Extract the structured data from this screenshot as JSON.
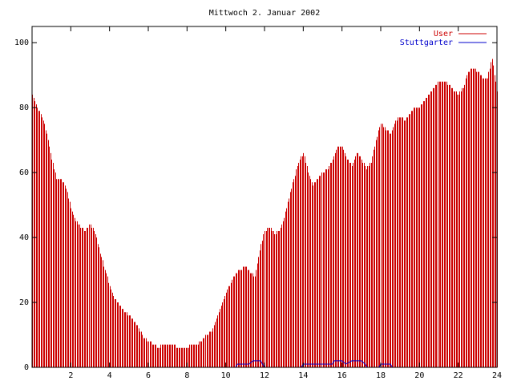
{
  "chart_data": {
    "type": "bar",
    "title": "Mittwoch 2. Januar 2002",
    "xlabel": "",
    "ylabel": "",
    "xlim": [
      0,
      24
    ],
    "ylim": [
      0,
      105
    ],
    "x_ticks": [
      2,
      4,
      6,
      8,
      10,
      12,
      14,
      16,
      18,
      20,
      22,
      24
    ],
    "y_ticks": [
      0,
      20,
      40,
      60,
      80,
      100
    ],
    "grid": false,
    "legend_position": "top-right",
    "series": [
      {
        "name": "User",
        "style": "impulses",
        "color": "#cc0000",
        "points": [
          [
            0.0,
            84
          ],
          [
            0.25,
            80
          ],
          [
            0.5,
            77
          ],
          [
            0.75,
            72
          ],
          [
            1.0,
            64
          ],
          [
            1.25,
            58
          ],
          [
            1.5,
            58
          ],
          [
            1.75,
            55
          ],
          [
            2.0,
            49
          ],
          [
            2.25,
            45
          ],
          [
            2.5,
            43
          ],
          [
            2.75,
            42
          ],
          [
            3.0,
            44
          ],
          [
            3.25,
            41
          ],
          [
            3.5,
            35
          ],
          [
            3.75,
            30
          ],
          [
            4.0,
            25
          ],
          [
            4.25,
            21
          ],
          [
            4.5,
            19
          ],
          [
            4.75,
            17
          ],
          [
            5.0,
            16
          ],
          [
            5.25,
            14
          ],
          [
            5.5,
            12
          ],
          [
            5.75,
            9
          ],
          [
            6.0,
            8
          ],
          [
            6.25,
            7
          ],
          [
            6.5,
            6
          ],
          [
            6.75,
            7
          ],
          [
            7.0,
            7
          ],
          [
            7.25,
            7
          ],
          [
            7.5,
            6
          ],
          [
            7.75,
            6
          ],
          [
            8.0,
            6
          ],
          [
            8.25,
            7
          ],
          [
            8.5,
            7
          ],
          [
            8.75,
            8
          ],
          [
            9.0,
            10
          ],
          [
            9.25,
            11
          ],
          [
            9.5,
            15
          ],
          [
            9.75,
            19
          ],
          [
            10.0,
            23
          ],
          [
            10.25,
            26
          ],
          [
            10.5,
            29
          ],
          [
            10.75,
            30
          ],
          [
            11.0,
            31
          ],
          [
            11.25,
            29
          ],
          [
            11.5,
            28
          ],
          [
            11.75,
            36
          ],
          [
            12.0,
            42
          ],
          [
            12.25,
            43
          ],
          [
            12.5,
            41
          ],
          [
            12.75,
            42
          ],
          [
            13.0,
            46
          ],
          [
            13.25,
            52
          ],
          [
            13.5,
            58
          ],
          [
            13.75,
            63
          ],
          [
            14.0,
            66
          ],
          [
            14.25,
            60
          ],
          [
            14.5,
            56
          ],
          [
            14.75,
            58
          ],
          [
            15.0,
            60
          ],
          [
            15.25,
            61
          ],
          [
            15.5,
            64
          ],
          [
            15.75,
            68
          ],
          [
            16.0,
            68
          ],
          [
            16.25,
            64
          ],
          [
            16.5,
            62
          ],
          [
            16.75,
            66
          ],
          [
            17.0,
            64
          ],
          [
            17.25,
            61
          ],
          [
            17.5,
            63
          ],
          [
            17.75,
            70
          ],
          [
            18.0,
            75
          ],
          [
            18.25,
            73
          ],
          [
            18.5,
            72
          ],
          [
            18.75,
            76
          ],
          [
            19.0,
            77
          ],
          [
            19.25,
            76
          ],
          [
            19.5,
            78
          ],
          [
            19.75,
            80
          ],
          [
            20.0,
            80
          ],
          [
            20.25,
            82
          ],
          [
            20.5,
            84
          ],
          [
            20.75,
            86
          ],
          [
            21.0,
            88
          ],
          [
            21.25,
            88
          ],
          [
            21.5,
            87
          ],
          [
            21.75,
            85
          ],
          [
            22.0,
            84
          ],
          [
            22.25,
            86
          ],
          [
            22.5,
            91
          ],
          [
            22.75,
            92
          ],
          [
            23.0,
            91
          ],
          [
            23.25,
            89
          ],
          [
            23.5,
            89
          ],
          [
            23.75,
            95
          ],
          [
            24.0,
            85
          ]
        ]
      },
      {
        "name": "Stuttgarter",
        "style": "line",
        "color": "#0000cc",
        "points": [
          [
            0,
            0
          ],
          [
            10.5,
            0
          ],
          [
            10.6,
            1
          ],
          [
            11.2,
            1
          ],
          [
            11.4,
            2
          ],
          [
            11.8,
            2
          ],
          [
            12.0,
            0
          ],
          [
            13.9,
            0
          ],
          [
            14.0,
            1
          ],
          [
            15.5,
            1
          ],
          [
            15.6,
            2
          ],
          [
            16.0,
            2
          ],
          [
            16.2,
            1
          ],
          [
            16.5,
            2
          ],
          [
            17.0,
            2
          ],
          [
            17.2,
            1
          ],
          [
            17.3,
            0
          ],
          [
            17.9,
            0
          ],
          [
            18.0,
            1
          ],
          [
            18.5,
            1
          ],
          [
            18.6,
            0
          ],
          [
            24,
            0
          ]
        ]
      }
    ]
  }
}
